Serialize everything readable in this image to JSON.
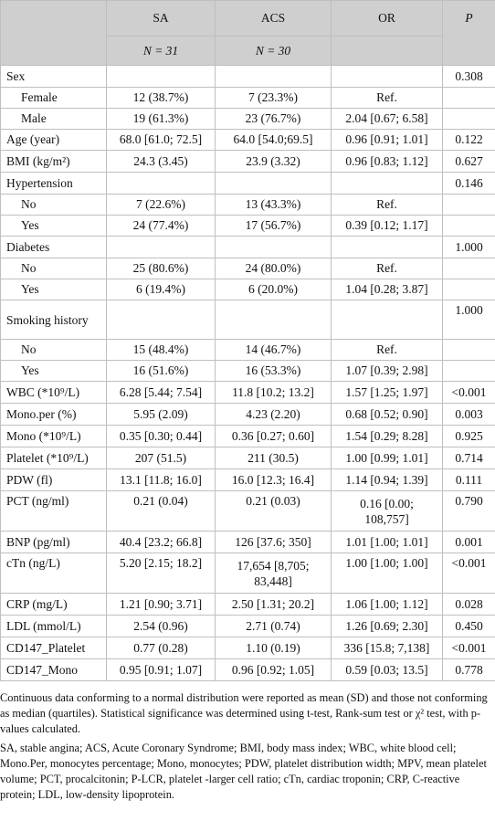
{
  "header": {
    "col_sa": "SA",
    "col_acs": "ACS",
    "col_or": "OR",
    "col_p": "P",
    "n_sa": "N = 31",
    "n_acs": "N = 30"
  },
  "rows": {
    "sex": {
      "label": "Sex",
      "sa": "",
      "acs": "",
      "or": "",
      "p": "0.308"
    },
    "female": {
      "label": "Female",
      "sa": "12 (38.7%)",
      "acs": "7 (23.3%)",
      "or": "Ref.",
      "p": ""
    },
    "male": {
      "label": "Male",
      "sa": "19 (61.3%)",
      "acs": "23 (76.7%)",
      "or": "2.04 [0.67; 6.58]",
      "p": ""
    },
    "age": {
      "label": "Age (year)",
      "sa": "68.0 [61.0; 72.5]",
      "acs": "64.0 [54.0;69.5]",
      "or": "0.96 [0.91; 1.01]",
      "p": "0.122"
    },
    "bmi": {
      "label": "BMI (kg/m²)",
      "sa": "24.3 (3.45)",
      "acs": "23.9 (3.32)",
      "or": "0.96 [0.83; 1.12]",
      "p": "0.627"
    },
    "hypertension": {
      "label": "Hypertension",
      "sa": "",
      "acs": "",
      "or": "",
      "p": "0.146"
    },
    "ht_no": {
      "label": "No",
      "sa": "7 (22.6%)",
      "acs": "13 (43.3%)",
      "or": "Ref.",
      "p": ""
    },
    "ht_yes": {
      "label": "Yes",
      "sa": "24 (77.4%)",
      "acs": "17 (56.7%)",
      "or": "0.39 [0.12; 1.17]",
      "p": ""
    },
    "diabetes": {
      "label": "Diabetes",
      "sa": "",
      "acs": "",
      "or": "",
      "p": "1.000"
    },
    "db_no": {
      "label": "No",
      "sa": "25 (80.6%)",
      "acs": "24 (80.0%)",
      "or": "Ref.",
      "p": ""
    },
    "db_yes": {
      "label": "Yes",
      "sa": "6 (19.4%)",
      "acs": "6 (20.0%)",
      "or": "1.04 [0.28; 3.87]",
      "p": ""
    },
    "smoking": {
      "label": "Smoking history",
      "sa": "",
      "acs": "",
      "or": "",
      "p": "1.000"
    },
    "sm_no": {
      "label": "No",
      "sa": "15 (48.4%)",
      "acs": "14 (46.7%)",
      "or": "Ref.",
      "p": ""
    },
    "sm_yes": {
      "label": "Yes",
      "sa": "16 (51.6%)",
      "acs": "16 (53.3%)",
      "or": "1.07 [0.39; 2.98]",
      "p": ""
    },
    "wbc": {
      "label": "WBC (*10⁹/L)",
      "sa": "6.28 [5.44; 7.54]",
      "acs": "11.8 [10.2; 13.2]",
      "or": "1.57 [1.25; 1.97]",
      "p": "<0.001"
    },
    "monoper": {
      "label": "Mono.per (%)",
      "sa": "5.95 (2.09)",
      "acs": "4.23 (2.20)",
      "or": "0.68 [0.52; 0.90]",
      "p": "0.003"
    },
    "mono": {
      "label": "Mono (*10⁹/L)",
      "sa": "0.35 [0.30; 0.44]",
      "acs": "0.36 [0.27; 0.60]",
      "or": "1.54 [0.29; 8.28]",
      "p": "0.925"
    },
    "platelet": {
      "label": "Platelet (*10⁹/L)",
      "sa": "207 (51.5)",
      "acs": "211 (30.5)",
      "or": "1.00 [0.99; 1.01]",
      "p": "0.714"
    },
    "pdw": {
      "label": "PDW (fl)",
      "sa": "13.1 [11.8; 16.0]",
      "acs": "16.0 [12.3; 16.4]",
      "or": "1.14 [0.94; 1.39]",
      "p": "0.111"
    },
    "pct": {
      "label": "PCT (ng/ml)",
      "sa": "0.21 (0.04)",
      "acs": "0.21 (0.03)",
      "or": "0.16 [0.00; 108,757]",
      "p": "0.790"
    },
    "bnp": {
      "label": "BNP (pg/ml)",
      "sa": "40.4 [23.2; 66.8]",
      "acs": "126 [37.6; 350]",
      "or": "1.01 [1.00; 1.01]",
      "p": "0.001"
    },
    "ctn": {
      "label": "cTn (ng/L)",
      "sa": "5.20 [2.15; 18.2]",
      "acs": "17,654 [8,705; 83,448]",
      "or": "1.00 [1.00; 1.00]",
      "p": "<0.001"
    },
    "crp": {
      "label": "CRP (mg/L)",
      "sa": "1.21 [0.90; 3.71]",
      "acs": "2.50 [1.31; 20.2]",
      "or": "1.06 [1.00; 1.12]",
      "p": "0.028"
    },
    "ldl": {
      "label": "LDL (mmol/L)",
      "sa": "2.54 (0.96)",
      "acs": "2.71 (0.74)",
      "or": "1.26 [0.69; 2.30]",
      "p": "0.450"
    },
    "cd147p": {
      "label": "CD147_Platelet",
      "sa": "0.77 (0.28)",
      "acs": "1.10 (0.19)",
      "or": "336 [15.8; 7,138]",
      "p": "<0.001"
    },
    "cd147m": {
      "label": "CD147_Mono",
      "sa": "0.95 [0.91; 1.07]",
      "acs": "0.96 [0.92; 1.05]",
      "or": "0.59 [0.03; 13.5]",
      "p": "0.778"
    }
  },
  "notes": {
    "n1": "Continuous data conforming to a normal distribution were reported as mean (SD) and those not conforming as median (quartiles). Statistical significance was determined using t-test, Rank-sum test or χ² test, with p-values calculated.",
    "n2": "SA, stable angina; ACS, Acute Coronary Syndrome; BMI, body mass index; WBC, white blood cell; Mono.Per, monocytes percentage; Mono, monocytes; PDW, platelet distribution width; MPV, mean platelet volume; PCT, procalcitonin; P-LCR, platelet -larger cell ratio; cTn, cardiac troponin; CRP, C-reactive protein; LDL, low-density lipoprotein."
  }
}
